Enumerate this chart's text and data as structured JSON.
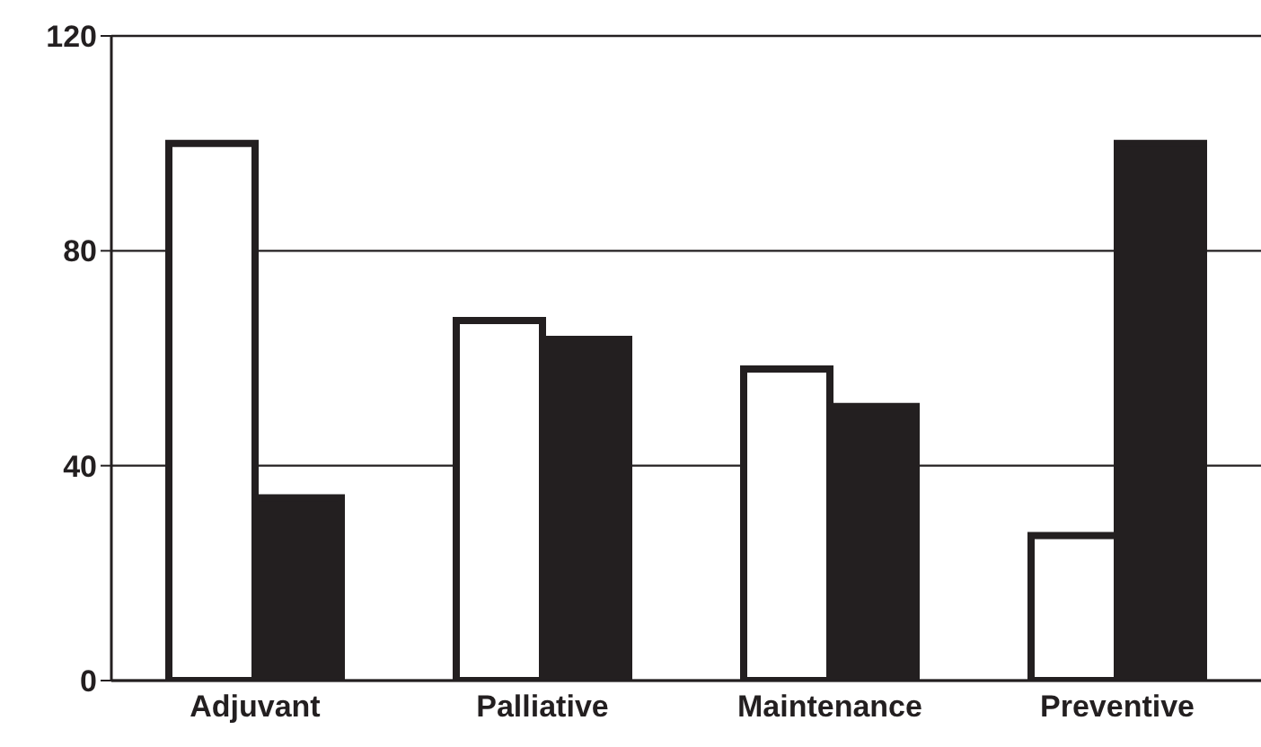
{
  "chart_data": {
    "type": "bar",
    "categories": [
      "Adjuvant",
      "Palliative",
      "Maintenance",
      "Preventive"
    ],
    "series": [
      {
        "color": "#ffffff",
        "values": [
          100,
          67,
          58,
          27
        ]
      },
      {
        "color": "#231f20",
        "values": [
          34,
          63.5,
          51,
          100
        ]
      }
    ],
    "ylim": [
      0,
      120
    ],
    "yticks": [
      0,
      40,
      80,
      120
    ],
    "grid": "y",
    "legend": false
  }
}
